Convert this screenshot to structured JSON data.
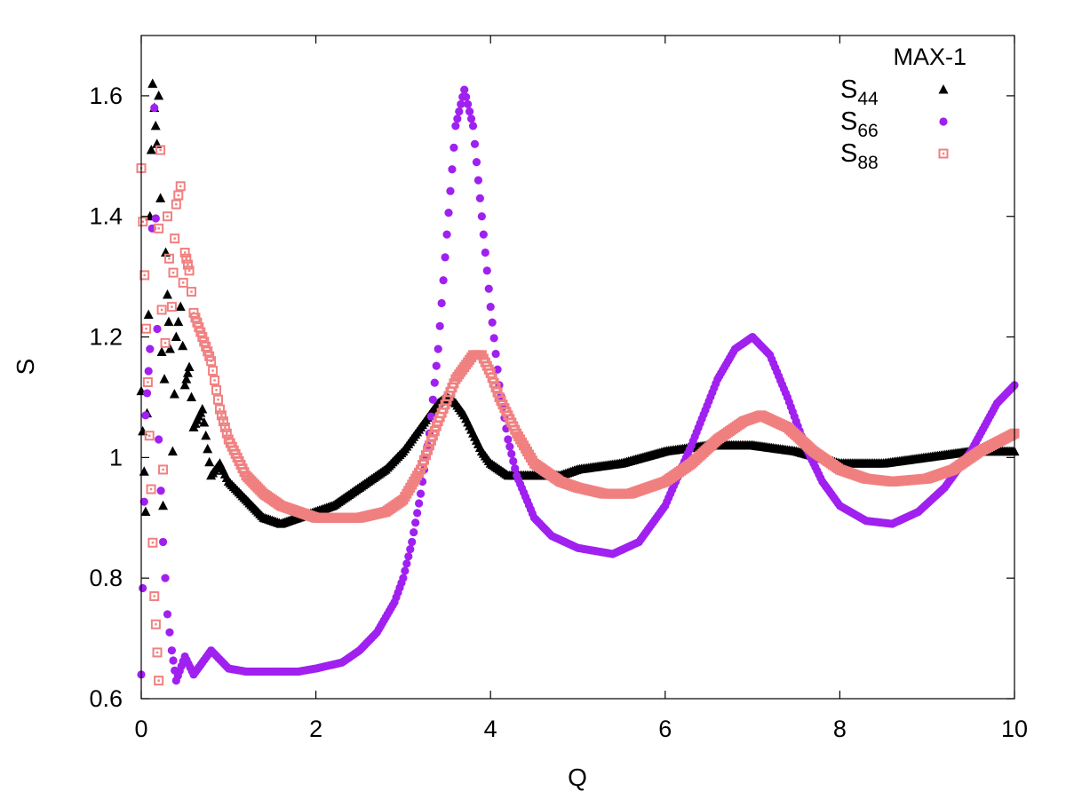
{
  "chart_data": {
    "type": "scatter",
    "title": "",
    "xlabel": "Q",
    "ylabel": "S",
    "xlim": [
      0,
      10
    ],
    "ylim": [
      0.6,
      1.7
    ],
    "xticks": [
      0,
      2,
      4,
      6,
      8,
      10
    ],
    "yticks": [
      0.6,
      0.8,
      1,
      1.2,
      1.4,
      1.6
    ],
    "xtick_labels": [
      "0",
      "2",
      "4",
      "6",
      "8",
      "10"
    ],
    "ytick_labels": [
      "0.6",
      "0.8",
      "1",
      "1.2",
      "1.4",
      "1.6"
    ],
    "grid": false,
    "legend": {
      "title": "MAX-1",
      "position": "top-right",
      "entries": [
        {
          "main": "S",
          "sub": "44"
        },
        {
          "main": "S",
          "sub": "66"
        },
        {
          "main": "S",
          "sub": "88"
        }
      ]
    },
    "series": [
      {
        "name": "S44",
        "color": "#000000",
        "marker": "triangle",
        "points": [
          [
            0.0,
            1.11
          ],
          [
            0.05,
            0.91
          ],
          [
            0.1,
            1.4
          ],
          [
            0.13,
            1.62
          ],
          [
            0.15,
            1.58
          ],
          [
            0.18,
            1.52
          ],
          [
            0.2,
            1.6
          ],
          [
            0.22,
            1.43
          ],
          [
            0.25,
            0.92
          ],
          [
            0.28,
            1.34
          ],
          [
            0.3,
            1.27
          ],
          [
            0.33,
            1.18
          ],
          [
            0.36,
            1.01
          ],
          [
            0.4,
            1.2
          ],
          [
            0.45,
            1.25
          ],
          [
            0.5,
            1.12
          ],
          [
            0.55,
            1.15
          ],
          [
            0.6,
            1.05
          ],
          [
            0.7,
            1.08
          ],
          [
            0.8,
            0.97
          ],
          [
            0.9,
            0.99
          ],
          [
            1.0,
            0.96
          ],
          [
            1.2,
            0.93
          ],
          [
            1.4,
            0.9
          ],
          [
            1.6,
            0.89
          ],
          [
            1.8,
            0.9
          ],
          [
            2.0,
            0.91
          ],
          [
            2.2,
            0.92
          ],
          [
            2.4,
            0.94
          ],
          [
            2.6,
            0.96
          ],
          [
            2.8,
            0.98
          ],
          [
            3.0,
            1.01
          ],
          [
            3.2,
            1.05
          ],
          [
            3.4,
            1.09
          ],
          [
            3.5,
            1.1
          ],
          [
            3.6,
            1.09
          ],
          [
            3.7,
            1.07
          ],
          [
            3.8,
            1.04
          ],
          [
            3.9,
            1.01
          ],
          [
            4.0,
            0.99
          ],
          [
            4.2,
            0.97
          ],
          [
            4.5,
            0.97
          ],
          [
            4.8,
            0.97
          ],
          [
            5.0,
            0.98
          ],
          [
            5.5,
            0.99
          ],
          [
            6.0,
            1.01
          ],
          [
            6.5,
            1.02
          ],
          [
            7.0,
            1.02
          ],
          [
            7.5,
            1.01
          ],
          [
            8.0,
            0.99
          ],
          [
            8.5,
            0.99
          ],
          [
            9.0,
            1.0
          ],
          [
            9.5,
            1.01
          ],
          [
            10.0,
            1.01
          ]
        ]
      },
      {
        "name": "S66",
        "color": "#a020f0",
        "marker": "circle",
        "points": [
          [
            0.0,
            0.64
          ],
          [
            0.05,
            1.07
          ],
          [
            0.1,
            1.18
          ],
          [
            0.15,
            1.58
          ],
          [
            0.2,
            1.03
          ],
          [
            0.25,
            0.86
          ],
          [
            0.3,
            0.74
          ],
          [
            0.35,
            0.68
          ],
          [
            0.4,
            0.63
          ],
          [
            0.5,
            0.67
          ],
          [
            0.6,
            0.64
          ],
          [
            0.7,
            0.66
          ],
          [
            0.8,
            0.68
          ],
          [
            1.0,
            0.65
          ],
          [
            1.2,
            0.645
          ],
          [
            1.5,
            0.645
          ],
          [
            1.8,
            0.645
          ],
          [
            2.0,
            0.65
          ],
          [
            2.3,
            0.66
          ],
          [
            2.5,
            0.68
          ],
          [
            2.7,
            0.71
          ],
          [
            2.9,
            0.76
          ],
          [
            3.0,
            0.8
          ],
          [
            3.1,
            0.86
          ],
          [
            3.2,
            0.94
          ],
          [
            3.3,
            1.04
          ],
          [
            3.4,
            1.18
          ],
          [
            3.5,
            1.37
          ],
          [
            3.6,
            1.55
          ],
          [
            3.7,
            1.61
          ],
          [
            3.8,
            1.55
          ],
          [
            3.9,
            1.4
          ],
          [
            4.0,
            1.25
          ],
          [
            4.1,
            1.12
          ],
          [
            4.2,
            1.03
          ],
          [
            4.3,
            0.97
          ],
          [
            4.5,
            0.9
          ],
          [
            4.7,
            0.87
          ],
          [
            5.0,
            0.85
          ],
          [
            5.4,
            0.84
          ],
          [
            5.7,
            0.86
          ],
          [
            6.0,
            0.92
          ],
          [
            6.3,
            1.02
          ],
          [
            6.6,
            1.13
          ],
          [
            6.8,
            1.18
          ],
          [
            7.0,
            1.2
          ],
          [
            7.2,
            1.17
          ],
          [
            7.4,
            1.1
          ],
          [
            7.6,
            1.02
          ],
          [
            7.8,
            0.96
          ],
          [
            8.0,
            0.92
          ],
          [
            8.3,
            0.895
          ],
          [
            8.6,
            0.89
          ],
          [
            8.9,
            0.91
          ],
          [
            9.2,
            0.95
          ],
          [
            9.5,
            1.01
          ],
          [
            9.8,
            1.09
          ],
          [
            10.0,
            1.12
          ]
        ]
      },
      {
        "name": "S88",
        "color": "#f08080",
        "marker": "square",
        "points": [
          [
            0.0,
            1.48
          ],
          [
            0.15,
            0.77
          ],
          [
            0.2,
            0.63
          ],
          [
            0.2,
            1.38
          ],
          [
            0.22,
            1.51
          ],
          [
            0.25,
            0.98
          ],
          [
            0.3,
            1.4
          ],
          [
            0.32,
            1.33
          ],
          [
            0.35,
            1.25
          ],
          [
            0.4,
            1.42
          ],
          [
            0.45,
            1.45
          ],
          [
            0.48,
            1.29
          ],
          [
            0.5,
            1.34
          ],
          [
            0.55,
            1.31
          ],
          [
            0.6,
            1.24
          ],
          [
            0.7,
            1.2
          ],
          [
            0.8,
            1.16
          ],
          [
            0.9,
            1.08
          ],
          [
            1.0,
            1.03
          ],
          [
            1.2,
            0.97
          ],
          [
            1.4,
            0.94
          ],
          [
            1.6,
            0.92
          ],
          [
            1.8,
            0.91
          ],
          [
            2.0,
            0.9
          ],
          [
            2.2,
            0.9
          ],
          [
            2.5,
            0.9
          ],
          [
            2.8,
            0.91
          ],
          [
            3.0,
            0.93
          ],
          [
            3.2,
            0.98
          ],
          [
            3.4,
            1.06
          ],
          [
            3.6,
            1.13
          ],
          [
            3.8,
            1.17
          ],
          [
            3.9,
            1.17
          ],
          [
            4.0,
            1.14
          ],
          [
            4.1,
            1.1
          ],
          [
            4.3,
            1.04
          ],
          [
            4.5,
            0.99
          ],
          [
            4.8,
            0.96
          ],
          [
            5.0,
            0.95
          ],
          [
            5.3,
            0.94
          ],
          [
            5.6,
            0.94
          ],
          [
            6.0,
            0.96
          ],
          [
            6.3,
            0.99
          ],
          [
            6.6,
            1.03
          ],
          [
            6.9,
            1.06
          ],
          [
            7.1,
            1.07
          ],
          [
            7.4,
            1.05
          ],
          [
            7.7,
            1.01
          ],
          [
            8.0,
            0.98
          ],
          [
            8.3,
            0.965
          ],
          [
            8.6,
            0.96
          ],
          [
            9.0,
            0.965
          ],
          [
            9.3,
            0.98
          ],
          [
            9.6,
            1.01
          ],
          [
            10.0,
            1.04
          ]
        ]
      }
    ]
  }
}
